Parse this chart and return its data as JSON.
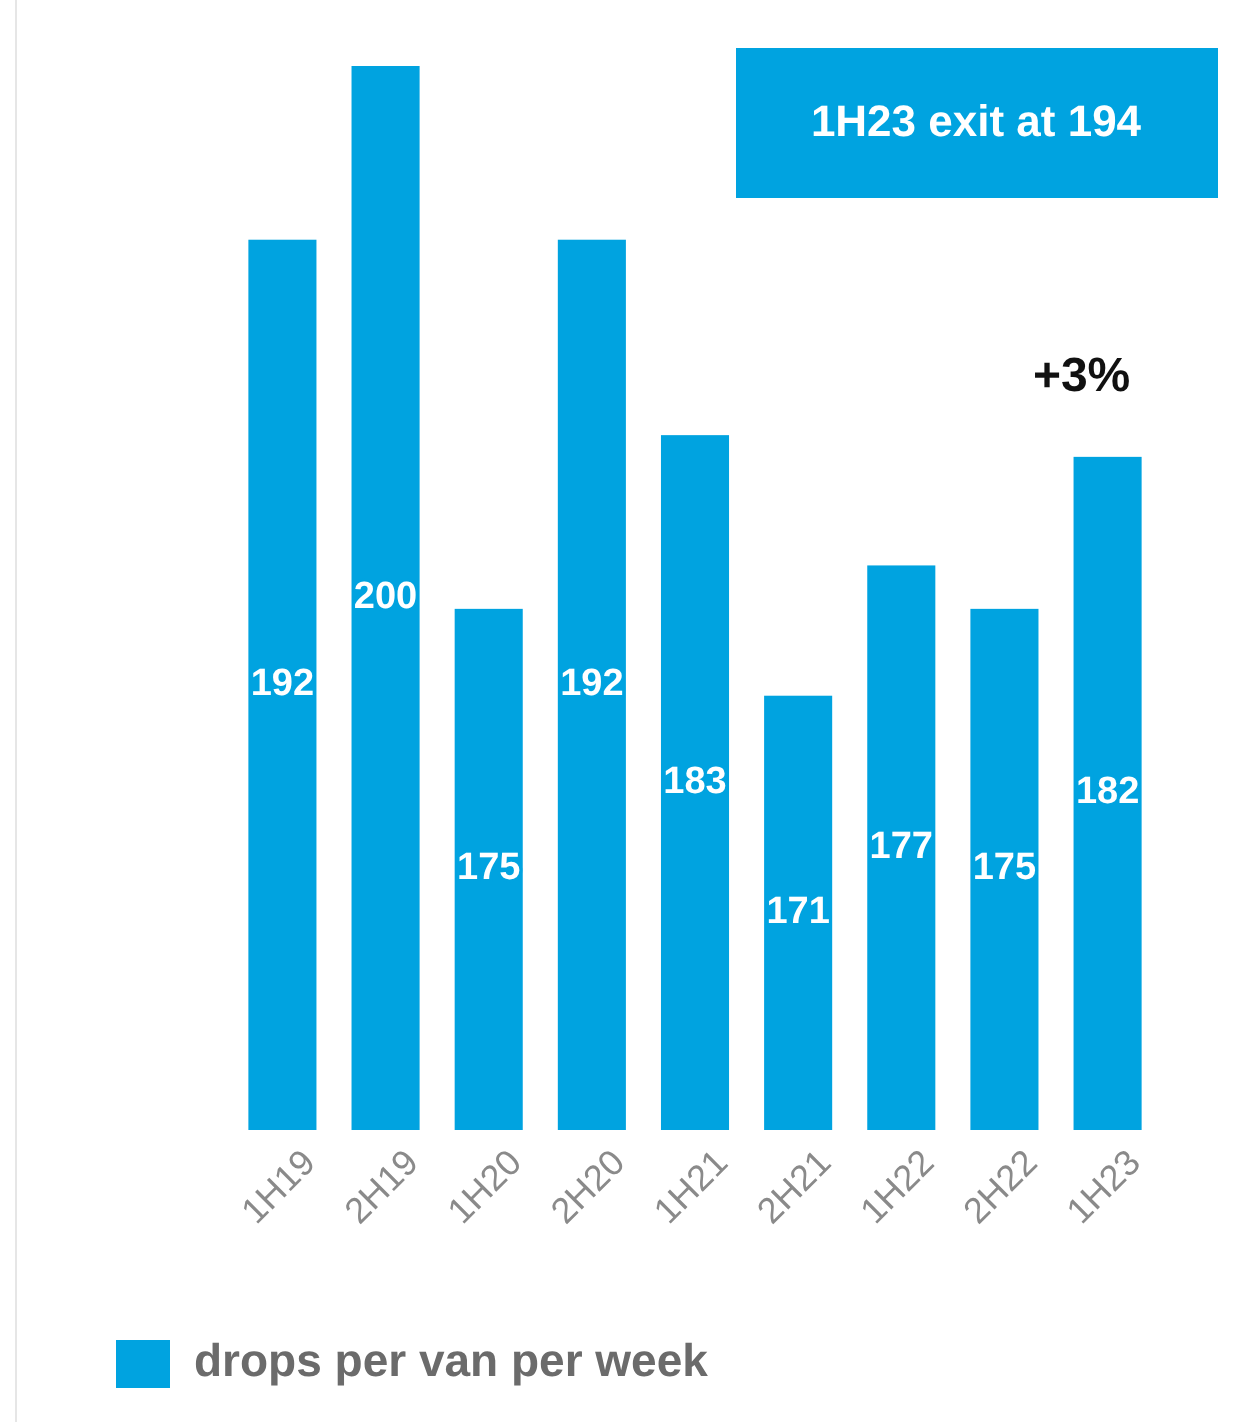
{
  "chart_data": {
    "type": "bar",
    "categories": [
      "1H19",
      "2H19",
      "1H20",
      "2H20",
      "1H21",
      "2H21",
      "1H22",
      "2H22",
      "1H23"
    ],
    "series": [
      {
        "name": "drops per van per week",
        "color": "#00a3e0",
        "values": [
          192,
          200,
          175,
          192,
          183,
          171,
          177,
          175,
          182
        ]
      }
    ],
    "ylim": [
      151,
      200
    ],
    "data_labels": true,
    "legend": "bottom",
    "tick_labels": "x",
    "annotations": [
      "1H23 exit at 194",
      {
        "text": "+3%",
        "x": "1H23",
        "y": 182
      }
    ]
  }
}
